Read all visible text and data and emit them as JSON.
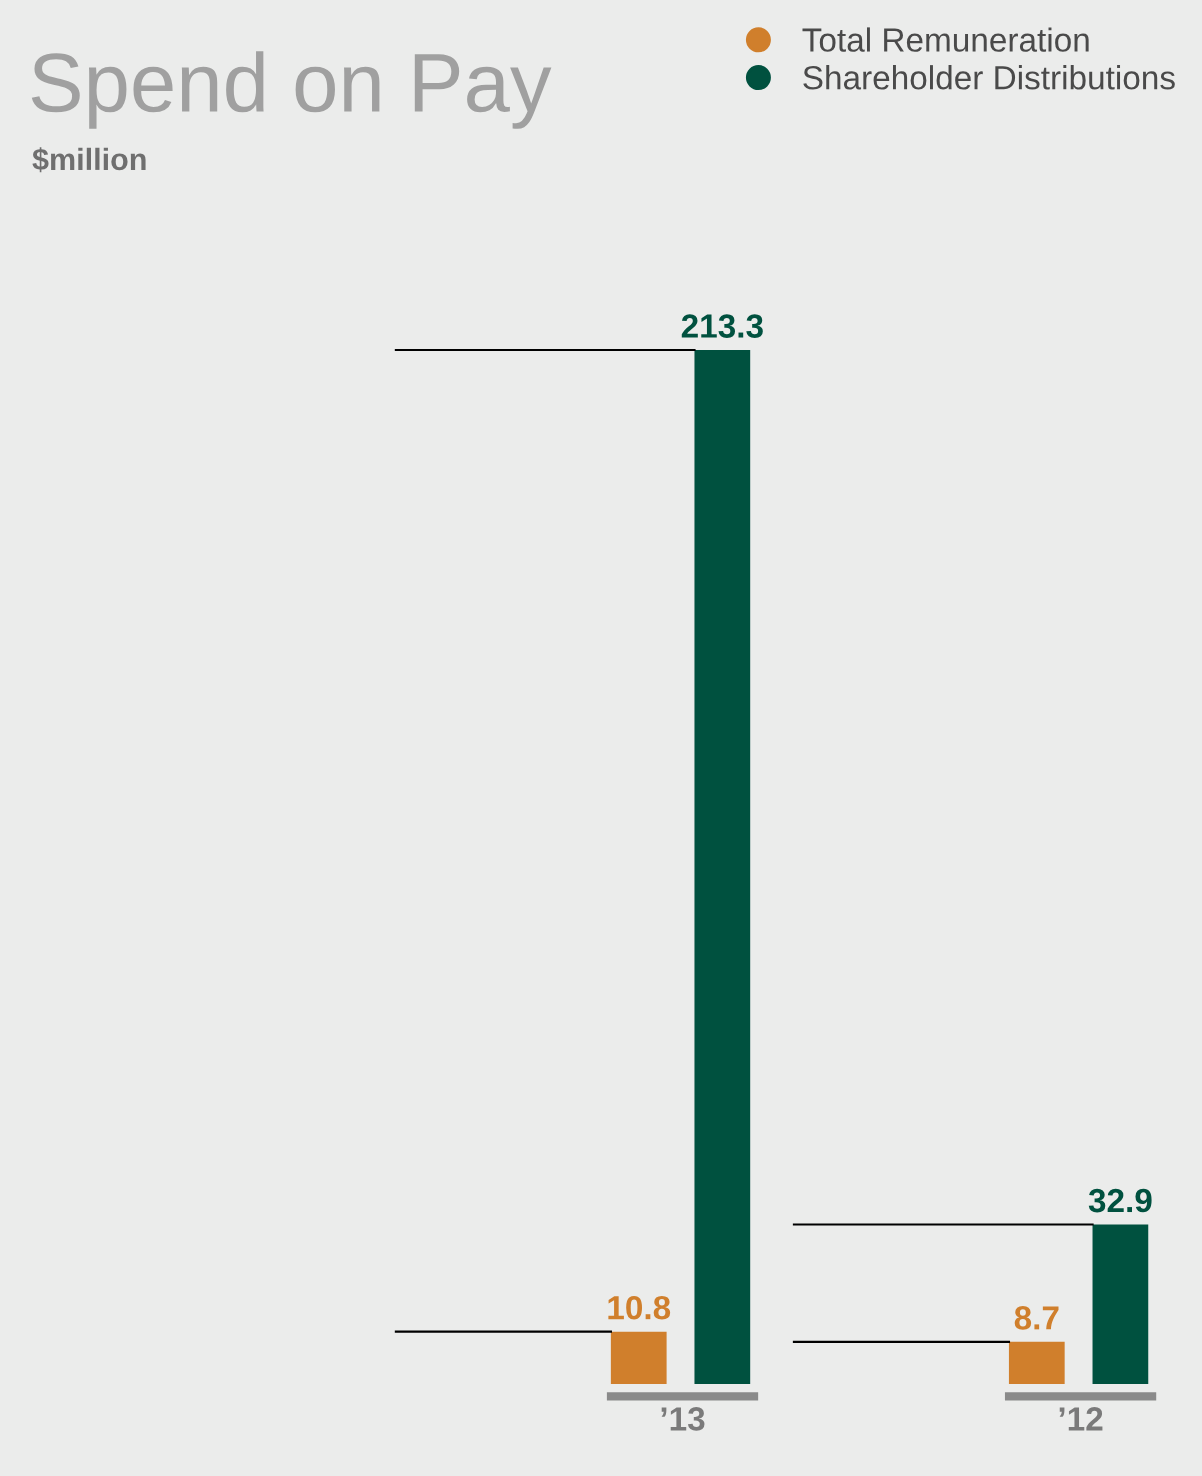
{
  "chart_data": {
    "type": "bar",
    "title": "Spend on Pay",
    "subtitle": "$million",
    "categories": [
      "’13",
      "’12"
    ],
    "series": [
      {
        "name": "Total Remuneration",
        "color": "#d07f2c",
        "values": [
          10.8,
          8.7
        ]
      },
      {
        "name": "Shareholder Distributions",
        "color": "#00513f",
        "values": [
          213.3,
          32.9
        ]
      }
    ],
    "data_labels": true,
    "legend": "top right",
    "grid": false,
    "marker": "circle"
  }
}
